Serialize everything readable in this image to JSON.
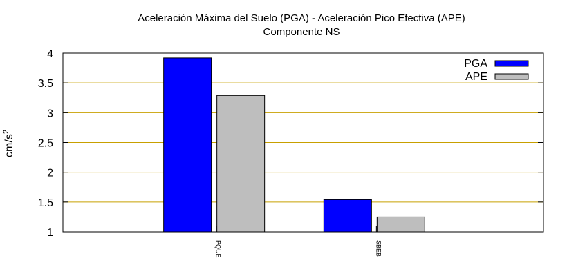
{
  "chart_data": {
    "type": "bar",
    "title": "Aceleración Máxima del Suelo (PGA) -  Aceleración Pico Efectiva (APE)",
    "subtitle": "Componente NS",
    "ylabel": "cm/s",
    "ylabel_sup": "2",
    "ylim": [
      1,
      4
    ],
    "yticks": [
      "1",
      "1.5",
      "2",
      "2.5",
      "3",
      "3.5",
      "4"
    ],
    "categories": [
      "PQUE",
      "SBEB"
    ],
    "series": [
      {
        "name": "PGA",
        "values": [
          3.92,
          1.54
        ],
        "color": "#0000ff"
      },
      {
        "name": "APE",
        "values": [
          3.29,
          1.25
        ],
        "color": "#bebebe"
      }
    ],
    "grid": "horizontal",
    "grid_color": "#c8a000",
    "legend_position": "top-right"
  }
}
